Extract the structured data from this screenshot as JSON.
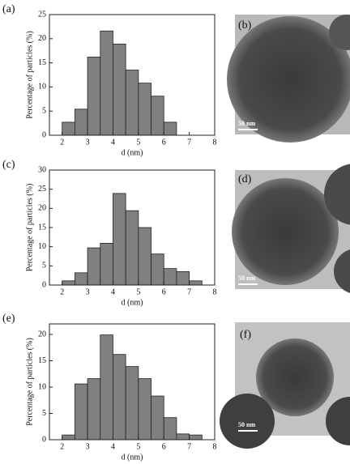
{
  "chart_data": [
    {
      "type": "histogram",
      "label": "(a)",
      "xlabel": "d (nm)",
      "ylabel": "Percentage of particles (%)",
      "bins": [
        2,
        2.5,
        3,
        3.5,
        4,
        4.5,
        5,
        5.5,
        6,
        6.5
      ],
      "values": [
        2.7,
        5.4,
        16.2,
        21.6,
        18.9,
        13.5,
        10.8,
        8.1,
        2.7
      ],
      "color": "#808080",
      "xlim": [
        1.5,
        8
      ],
      "ylim": [
        0,
        25
      ],
      "xticks": [
        2,
        3,
        4,
        5,
        6,
        7,
        8
      ],
      "yticks": [
        0,
        5,
        10,
        15,
        20,
        25
      ]
    },
    {
      "type": "histogram",
      "label": "(c)",
      "xlabel": "d (nm)",
      "ylabel": "Percentage of particles (%)",
      "bins": [
        2,
        2.5,
        3,
        3.5,
        4,
        4.5,
        5,
        5.5,
        6,
        6.5,
        7,
        7.5
      ],
      "values": [
        1.1,
        3.2,
        9.7,
        10.9,
        23.9,
        19.4,
        15,
        8.1,
        4.3,
        3.5,
        1.1
      ],
      "color": "#808080",
      "xlim": [
        1.5,
        8
      ],
      "ylim": [
        0,
        30
      ],
      "xticks": [
        2,
        3,
        4,
        5,
        6,
        7,
        8
      ],
      "yticks": [
        0,
        5,
        10,
        15,
        20,
        25,
        30
      ]
    },
    {
      "type": "histogram",
      "label": "(e)",
      "xlabel": "d (nm)",
      "ylabel": "Percentage of particles (%)",
      "bins": [
        2,
        2.5,
        3,
        3.5,
        4,
        4.5,
        5,
        5.5,
        6,
        6.5,
        7,
        7.5
      ],
      "values": [
        0.9,
        10.6,
        11.6,
        19.9,
        16.2,
        13.9,
        11.6,
        8.3,
        4.2,
        1.1,
        0.9
      ],
      "color": "#808080",
      "xlim": [
        1.5,
        8
      ],
      "ylim": [
        0,
        22
      ],
      "xticks": [
        2,
        3,
        4,
        5,
        6,
        7,
        8
      ],
      "yticks": [
        0,
        5,
        10,
        15,
        20
      ]
    }
  ],
  "images": [
    {
      "label": "(b)",
      "scale_label": "50 nm"
    },
    {
      "label": "(d)",
      "scale_label": "50 nm"
    },
    {
      "label": "(f)",
      "scale_label": "50 nm"
    }
  ]
}
